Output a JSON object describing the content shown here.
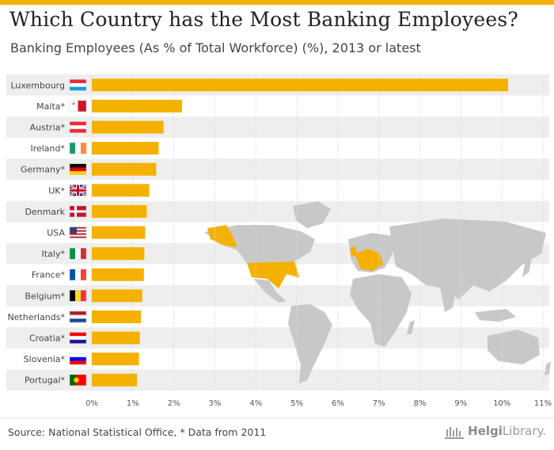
{
  "title": "Which Country has the Most Banking Employees?",
  "subtitle": "Banking Employees (As % of Total Workforce) (%), 2013 or latest",
  "source": "Source: National Statistical Office, * Data from 2011",
  "brand": {
    "name_bold": "Helgi",
    "name_rest": "Library.",
    "logo_icon": "library-building-icon"
  },
  "colors": {
    "bar": "#f5b100",
    "row_shade": "#eeeeee",
    "map_land": "#c8c8c8",
    "map_highlight": "#f5b100"
  },
  "chart_data": {
    "type": "bar",
    "orientation": "horizontal",
    "categories": [
      "Luxembourg",
      "Malta*",
      "Austria*",
      "Ireland*",
      "Germany*",
      "UK*",
      "Denmark",
      "USA",
      "Italy*",
      "France*",
      "Belgium*",
      "Netherlands*",
      "Croatia*",
      "Slovenia*",
      "Portugal*"
    ],
    "values": [
      10.15,
      2.2,
      1.75,
      1.63,
      1.57,
      1.4,
      1.34,
      1.3,
      1.28,
      1.27,
      1.23,
      1.2,
      1.17,
      1.15,
      1.1
    ],
    "xlim": [
      0,
      11
    ],
    "x_ticks": [
      "0%",
      "1%",
      "2%",
      "3%",
      "4%",
      "5%",
      "6%",
      "7%",
      "8%",
      "9%",
      "10%",
      "11%"
    ],
    "flags": [
      {
        "country": "Luxembourg",
        "icon": "luxembourg-flag-icon",
        "stripes": "h",
        "colors": [
          "#ed2939",
          "#ffffff",
          "#00a1de"
        ]
      },
      {
        "country": "Malta",
        "icon": "malta-flag-icon",
        "stripes": "v",
        "colors": [
          "#ffffff",
          "#cf142b"
        ]
      },
      {
        "country": "Austria",
        "icon": "austria-flag-icon",
        "stripes": "h",
        "colors": [
          "#ed2939",
          "#ffffff",
          "#ed2939"
        ]
      },
      {
        "country": "Ireland",
        "icon": "ireland-flag-icon",
        "stripes": "v",
        "colors": [
          "#169b62",
          "#ffffff",
          "#ff883e"
        ]
      },
      {
        "country": "Germany",
        "icon": "germany-flag-icon",
        "stripes": "h",
        "colors": [
          "#000000",
          "#dd0000",
          "#ffce00"
        ]
      },
      {
        "country": "UK",
        "icon": "uk-flag-icon",
        "stripes": "uk",
        "colors": [
          "#012169",
          "#ffffff",
          "#c8102e"
        ]
      },
      {
        "country": "Denmark",
        "icon": "denmark-flag-icon",
        "stripes": "nordic",
        "colors": [
          "#c8102e",
          "#ffffff"
        ]
      },
      {
        "country": "USA",
        "icon": "usa-flag-icon",
        "stripes": "us",
        "colors": [
          "#b22234",
          "#ffffff",
          "#3c3b6e"
        ]
      },
      {
        "country": "Italy",
        "icon": "italy-flag-icon",
        "stripes": "v",
        "colors": [
          "#009246",
          "#ffffff",
          "#ce2b37"
        ]
      },
      {
        "country": "France",
        "icon": "france-flag-icon",
        "stripes": "v",
        "colors": [
          "#0055a4",
          "#ffffff",
          "#ef4135"
        ]
      },
      {
        "country": "Belgium",
        "icon": "belgium-flag-icon",
        "stripes": "v",
        "colors": [
          "#000000",
          "#fdda24",
          "#ef3340"
        ]
      },
      {
        "country": "Netherlands",
        "icon": "netherlands-flag-icon",
        "stripes": "h",
        "colors": [
          "#ae1c28",
          "#ffffff",
          "#21468b"
        ]
      },
      {
        "country": "Croatia",
        "icon": "croatia-flag-icon",
        "stripes": "h",
        "colors": [
          "#ff0000",
          "#ffffff",
          "#171796"
        ]
      },
      {
        "country": "Slovenia",
        "icon": "slovenia-flag-icon",
        "stripes": "h",
        "colors": [
          "#ffffff",
          "#0000ff",
          "#ff0000"
        ]
      },
      {
        "country": "Portugal",
        "icon": "portugal-flag-icon",
        "stripes": "pt",
        "colors": [
          "#006600",
          "#ff0000"
        ]
      }
    ],
    "grid": "vertical",
    "background_map": "world-map-icon"
  }
}
